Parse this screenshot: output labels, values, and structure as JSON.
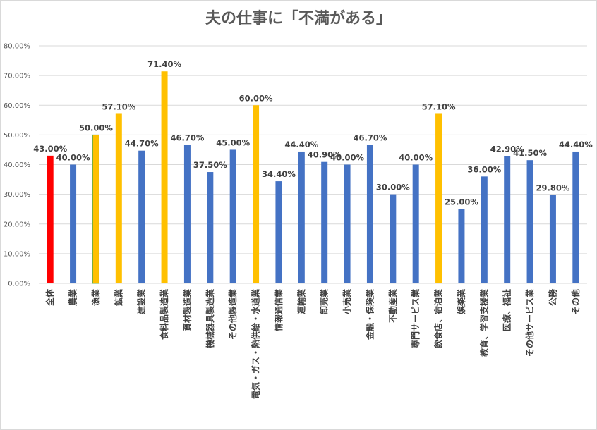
{
  "chart_data": {
    "type": "bar",
    "title": "夫の仕事に「不満がある」",
    "xlabel": "",
    "ylabel": "",
    "ylim": [
      0,
      80
    ],
    "yticks": [
      "0.00%",
      "10.00%",
      "20.00%",
      "30.00%",
      "40.00%",
      "50.00%",
      "60.00%",
      "70.00%",
      "80.00%"
    ],
    "grid": true,
    "legend": "none",
    "categories": [
      "全体",
      "農業",
      "漁業",
      "鉱業",
      "建設業",
      "食料品製造業",
      "資材製造業",
      "機械器具製造業",
      "その他製造業",
      "電気・ガス・熱供給・水道業",
      "情報通信業",
      "運輸業",
      "卸売業",
      "小売業",
      "金融・保険業",
      "不動産業",
      "専門サービス業",
      "飲食店、宿泊業",
      "娯楽業",
      "教育、学習支援業",
      "医療、福祉",
      "その他サービス業",
      "公務",
      "その他"
    ],
    "values": [
      43.0,
      40.0,
      50.0,
      57.1,
      44.7,
      71.4,
      46.7,
      37.5,
      45.0,
      60.0,
      34.4,
      44.4,
      40.9,
      40.0,
      46.7,
      30.0,
      40.0,
      57.1,
      25.0,
      36.0,
      42.9,
      41.5,
      29.8,
      44.4
    ],
    "data_labels": [
      "43.00%",
      "40.00%",
      "50.00%",
      "57.10%",
      "44.70%",
      "71.40%",
      "46.70%",
      "37.50%",
      "45.00%",
      "60.00%",
      "34.40%",
      "44.40%",
      "40.90%",
      "40.00%",
      "46.70%",
      "30.00%",
      "40.00%",
      "57.10%",
      "25.00%",
      "36.00%",
      "42.90%",
      "41.50%",
      "29.80%",
      "44.40%"
    ],
    "bar_colors": [
      "#ff0000",
      "#4472c4",
      "#ffc000",
      "#ffc000",
      "#4472c4",
      "#ffc000",
      "#4472c4",
      "#4472c4",
      "#4472c4",
      "#ffc000",
      "#4472c4",
      "#4472c4",
      "#4472c4",
      "#4472c4",
      "#4472c4",
      "#4472c4",
      "#4472c4",
      "#ffc000",
      "#4472c4",
      "#4472c4",
      "#4472c4",
      "#4472c4",
      "#4472c4",
      "#4472c4"
    ],
    "bar_outlines": [
      "none",
      "none",
      "#70ad47",
      "none",
      "none",
      "none",
      "none",
      "none",
      "none",
      "none",
      "none",
      "none",
      "none",
      "none",
      "none",
      "none",
      "none",
      "none",
      "none",
      "none",
      "none",
      "none",
      "none",
      "none"
    ],
    "gridline_color": "#d9d9d9"
  }
}
